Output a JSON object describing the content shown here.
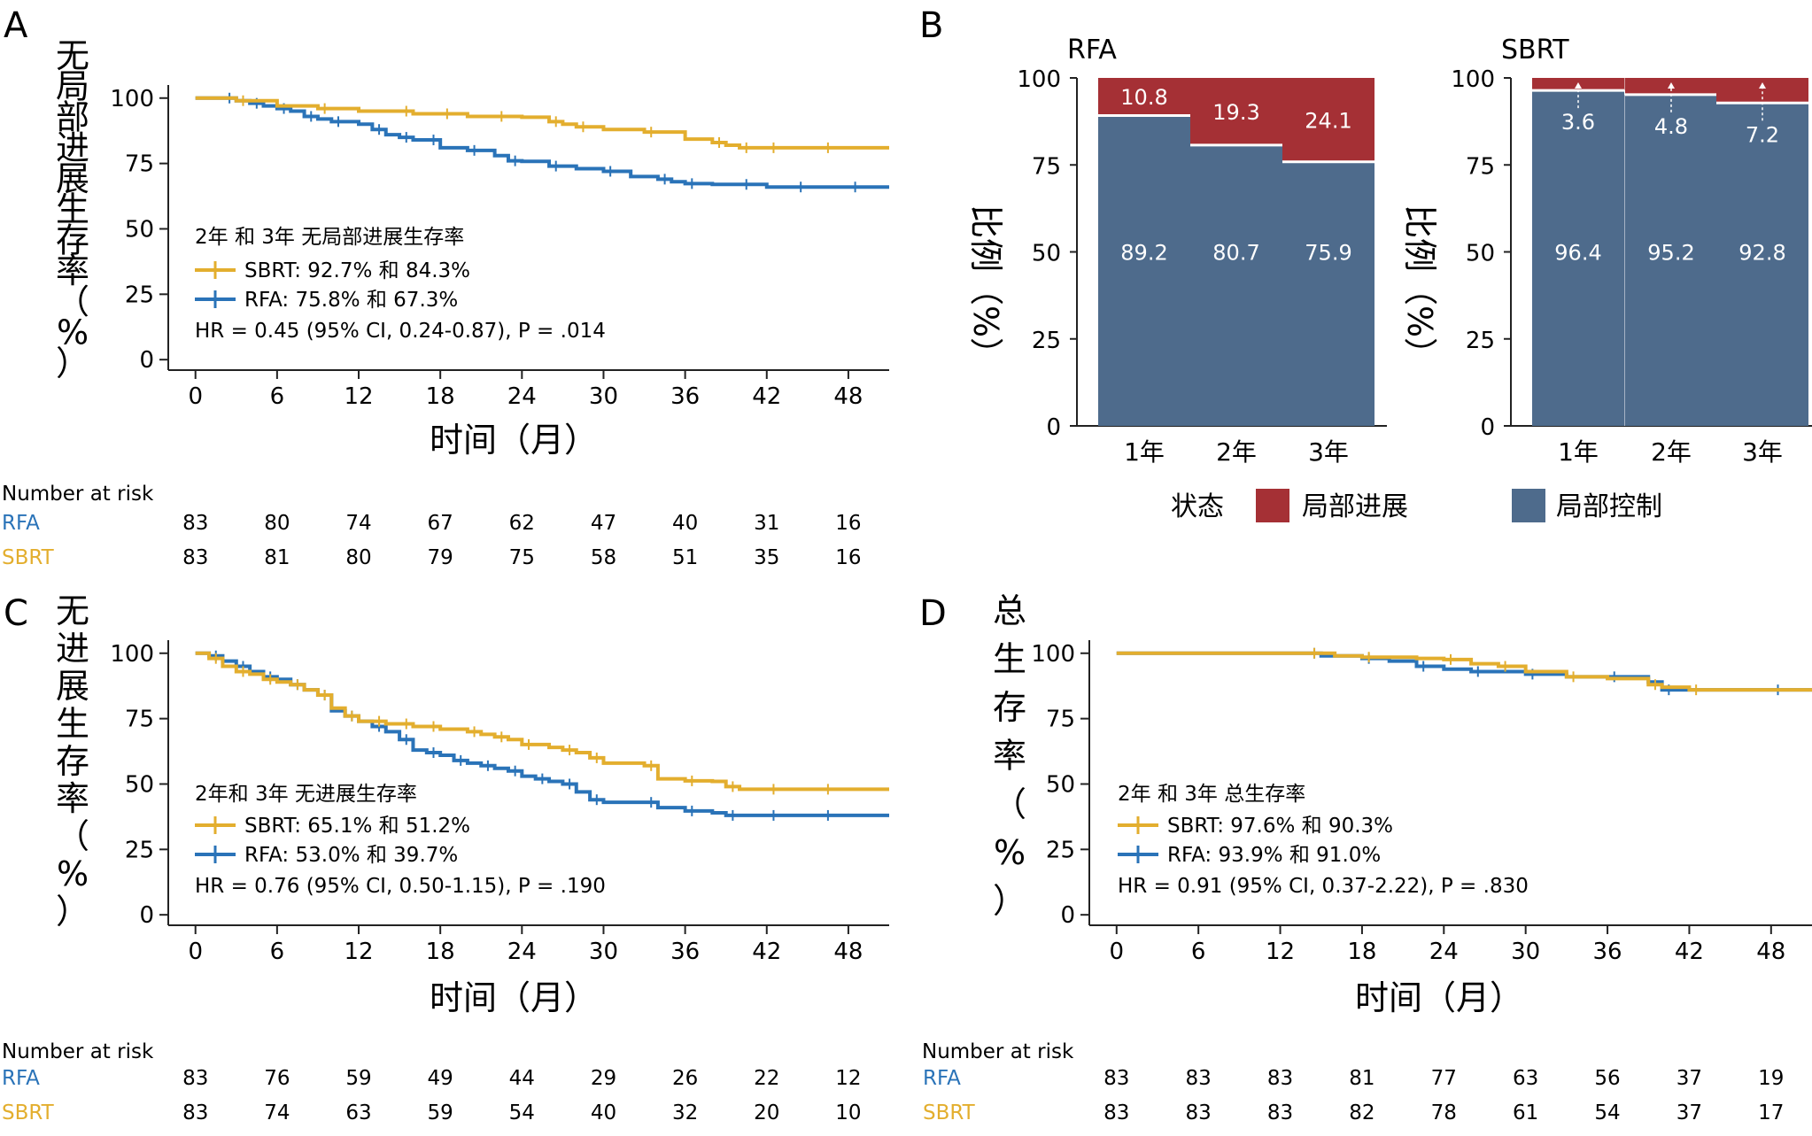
{
  "colors": {
    "sbrt": "#E3AE2E",
    "rfa": "#2A73B8",
    "progression": "#A53035",
    "progression_light": "#D19B9C",
    "control": "#4E6B8C",
    "control_light": "#A7B3C6",
    "axis": "#222222"
  },
  "panels": {
    "a": {
      "letter": "A"
    },
    "b": {
      "letter": "B"
    },
    "c": {
      "letter": "C"
    },
    "d": {
      "letter": "D"
    }
  },
  "common": {
    "xlabel": "时间（月）",
    "risk_title": "Number at risk",
    "x_ticks": [
      "0",
      "6",
      "12",
      "18",
      "24",
      "30",
      "36",
      "42",
      "48"
    ],
    "y_ticks": [
      "0",
      "25",
      "50",
      "75",
      "100"
    ]
  },
  "chart_data": [
    {
      "id": "a",
      "type": "line",
      "ylabel": "无局部进展生存率（%）",
      "xlim": [
        -2,
        51
      ],
      "ylim": [
        -4,
        105
      ],
      "annotation": {
        "heading": "2年 和 3年 无局部进展生存率",
        "sbrt": "SBRT: 92.7% 和 84.3%",
        "rfa": "RFA: 75.8% 和 67.3%",
        "hr": "HR = 0.45 (95% CI, 0.24-0.87), P = .014"
      },
      "series": [
        {
          "name": "SBRT",
          "x": [
            0,
            3,
            6,
            9,
            12,
            15,
            16,
            18,
            20,
            22,
            24,
            26,
            27,
            28,
            30,
            33,
            36,
            38,
            39,
            40,
            41,
            42,
            44,
            46,
            48,
            51
          ],
          "y": [
            100,
            99,
            97,
            96,
            95,
            95,
            94,
            94,
            93,
            93,
            92.7,
            91,
            90,
            89,
            88,
            87,
            84.3,
            83,
            82,
            81,
            81,
            81,
            81,
            81,
            81,
            81
          ]
        },
        {
          "name": "RFA",
          "x": [
            0,
            2,
            3,
            4,
            5,
            6,
            7,
            8,
            9,
            10,
            12,
            13,
            14,
            15,
            16,
            17,
            18,
            20,
            22,
            23,
            24,
            26,
            28,
            30,
            32,
            34,
            35,
            36,
            38,
            40,
            42,
            44,
            46,
            48,
            51
          ],
          "y": [
            100,
            100,
            99,
            98,
            97,
            96,
            95,
            93,
            92,
            91,
            90,
            88,
            86,
            85,
            84,
            84,
            81,
            80,
            78,
            76,
            75.8,
            74,
            73,
            72,
            70,
            69,
            68,
            67.3,
            67,
            67,
            66,
            66,
            66,
            66,
            66
          ]
        }
      ],
      "risk_table": [
        {
          "name": "RFA",
          "values": [
            "83",
            "80",
            "74",
            "67",
            "62",
            "47",
            "40",
            "31",
            "16"
          ]
        },
        {
          "name": "SBRT",
          "values": [
            "83",
            "81",
            "80",
            "79",
            "75",
            "58",
            "51",
            "35",
            "16"
          ]
        }
      ]
    },
    {
      "id": "b",
      "type": "bar",
      "stacked": true,
      "ylabel": "比例（%）",
      "ylim": [
        0,
        100
      ],
      "y_ticks": [
        "0",
        "25",
        "50",
        "75",
        "100"
      ],
      "categories": [
        "1年",
        "2年",
        "3年"
      ],
      "legend_title": "状态",
      "legend": [
        "局部进展",
        "局部控制"
      ],
      "groups": [
        {
          "title": "RFA",
          "control": [
            89.2,
            80.7,
            75.9
          ],
          "progression": [
            10.8,
            19.3,
            24.1
          ],
          "control_labels": [
            "89.2",
            "80.7",
            "75.9"
          ],
          "progression_labels": [
            "10.8",
            "19.3",
            "24.1"
          ]
        },
        {
          "title": "SBRT",
          "control": [
            96.4,
            95.2,
            92.8
          ],
          "progression": [
            3.6,
            4.8,
            7.2
          ],
          "control_labels": [
            "96.4",
            "95.2",
            "92.8"
          ],
          "progression_labels": [
            "3.6",
            "4.8",
            "7.2"
          ]
        }
      ]
    },
    {
      "id": "c",
      "type": "line",
      "ylabel": "无进展生存率（%）",
      "xlim": [
        -2,
        51
      ],
      "ylim": [
        -4,
        105
      ],
      "annotation": {
        "heading": "2年和 3年 无进展生存率",
        "sbrt": "SBRT: 65.1% 和 51.2%",
        "rfa": "RFA: 53.0% 和  39.7%",
        "hr": "HR = 0.76 (95% CI, 0.50-1.15), P = .190"
      },
      "series": [
        {
          "name": "SBRT",
          "x": [
            0,
            1,
            2,
            3,
            4,
            5,
            6,
            7,
            8,
            9,
            10,
            11,
            12,
            13,
            14,
            15,
            16,
            17,
            18,
            20,
            21,
            22,
            23,
            24,
            26,
            27,
            28,
            29,
            30,
            33,
            34,
            36,
            38,
            39,
            40,
            42,
            44,
            46,
            48,
            51
          ],
          "y": [
            100,
            98,
            95,
            93,
            92,
            90,
            89,
            88,
            86,
            84,
            79,
            76,
            74,
            74,
            73,
            73,
            72,
            72,
            71,
            70,
            69,
            68,
            67,
            65.1,
            64,
            63,
            62,
            60,
            58,
            57,
            52,
            51.2,
            51,
            49,
            48,
            48,
            48,
            48,
            48,
            48
          ]
        },
        {
          "name": "RFA",
          "x": [
            0,
            1,
            2,
            3,
            4,
            5,
            6,
            7,
            8,
            9,
            10,
            11,
            12,
            13,
            14,
            15,
            16,
            17,
            18,
            19,
            20,
            21,
            22,
            23,
            24,
            25,
            26,
            27,
            28,
            29,
            30,
            33,
            34,
            36,
            38,
            39,
            40,
            42,
            44,
            46,
            48,
            51
          ],
          "y": [
            100,
            99,
            97,
            95,
            93,
            91,
            90,
            88,
            86,
            84,
            78,
            76,
            74,
            72,
            70,
            67,
            63,
            62,
            61,
            59,
            58,
            57,
            56,
            55,
            53,
            52,
            51,
            50,
            47,
            44,
            43,
            43,
            41,
            39.7,
            39,
            38,
            38,
            38,
            38,
            38,
            38,
            38
          ]
        }
      ],
      "risk_table": [
        {
          "name": "RFA",
          "values": [
            "83",
            "76",
            "59",
            "49",
            "44",
            "29",
            "26",
            "22",
            "12"
          ]
        },
        {
          "name": "SBRT",
          "values": [
            "83",
            "74",
            "63",
            "59",
            "54",
            "40",
            "32",
            "20",
            "10"
          ]
        }
      ]
    },
    {
      "id": "d",
      "type": "line",
      "ylabel": "总生存率（%）",
      "xlim": [
        -2,
        51
      ],
      "ylim": [
        -4,
        105
      ],
      "annotation": {
        "heading": "2年 和 3年 总生存率",
        "sbrt": "SBRT: 97.6% 和 90.3%",
        "rfa": "RFA: 93.9% 和 91.0%",
        "hr": "HR = 0.91 (95% CI, 0.37-2.22), P = .830"
      },
      "series": [
        {
          "name": "SBRT",
          "x": [
            0,
            14,
            16,
            18,
            22,
            24,
            26,
            28,
            30,
            33,
            36,
            39,
            40,
            42,
            48,
            51
          ],
          "y": [
            100,
            100,
            99,
            98.5,
            98,
            97.6,
            96,
            95,
            93,
            91,
            90.3,
            88,
            87,
            86,
            86,
            86
          ]
        },
        {
          "name": "RFA",
          "x": [
            0,
            14,
            15,
            18,
            20,
            22,
            24,
            26,
            28,
            30,
            33,
            36,
            39,
            40,
            42,
            48,
            51
          ],
          "y": [
            100,
            100,
            99,
            98,
            97,
            95,
            93.9,
            93,
            93,
            92,
            91,
            91.0,
            89,
            86,
            86,
            86,
            86
          ]
        }
      ],
      "risk_table": [
        {
          "name": "RFA",
          "values": [
            "83",
            "83",
            "83",
            "81",
            "77",
            "63",
            "56",
            "37",
            "19"
          ]
        },
        {
          "name": "SBRT",
          "values": [
            "83",
            "83",
            "83",
            "82",
            "78",
            "61",
            "54",
            "37",
            "17"
          ]
        }
      ]
    }
  ]
}
